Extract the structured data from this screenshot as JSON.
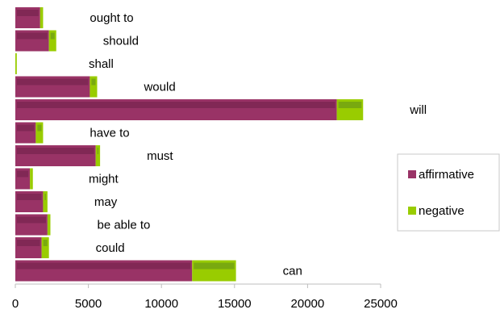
{
  "chart_data": {
    "type": "bar",
    "orientation": "horizontal",
    "stacked": true,
    "categories": [
      "can",
      "could",
      "be able to",
      "may",
      "might",
      "must",
      "have to",
      "will",
      "would",
      "shall",
      "should",
      "ought to"
    ],
    "series": [
      {
        "name": "affirmative",
        "color": "#993366",
        "values": [
          12100,
          1800,
          2200,
          1900,
          1000,
          5500,
          1400,
          22000,
          5100,
          0,
          2300,
          1700
        ]
      },
      {
        "name": "negative",
        "color": "#99cc00",
        "values": [
          3000,
          500,
          200,
          300,
          200,
          300,
          500,
          1800,
          500,
          100,
          500,
          200
        ]
      }
    ],
    "xlim": [
      0,
      25000
    ],
    "xticks": [
      "0",
      "5000",
      "10000",
      "15000",
      "20000",
      "25000"
    ],
    "legend_position": "right",
    "grid": false
  }
}
